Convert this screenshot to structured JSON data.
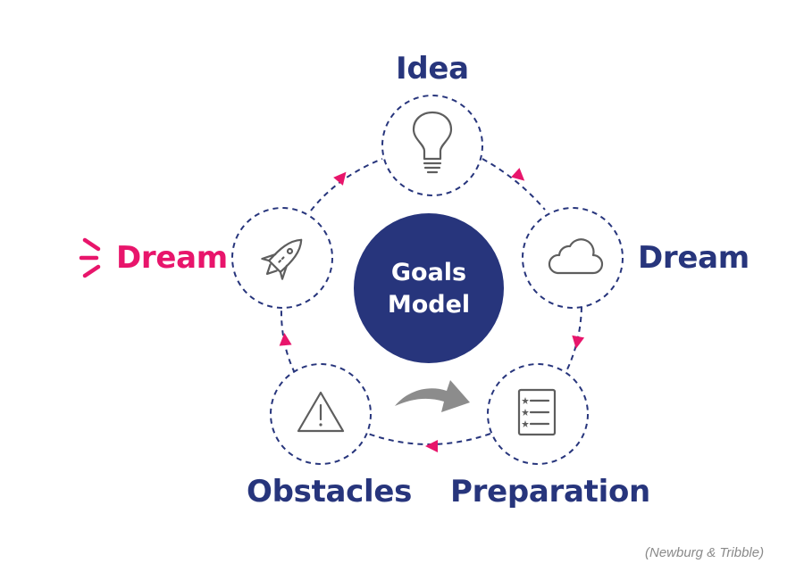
{
  "diagram": {
    "center": {
      "line1": "Goals",
      "line2": "Model"
    },
    "stages": [
      {
        "label": "Idea",
        "icon": "lightbulb-icon"
      },
      {
        "label": "Dream",
        "icon": "cloud-icon"
      },
      {
        "label": "Preparation",
        "icon": "checklist-icon"
      },
      {
        "label": "Obstacles",
        "icon": "warning-triangle-icon"
      },
      {
        "label": "Dream",
        "icon": "rocket-icon"
      }
    ],
    "citation": "(Newburg & Tribble)"
  },
  "colors": {
    "navy": "#27357c",
    "accent": "#e8156b",
    "icon_gray": "#5e5e5e",
    "arrow_gray": "#8c8c8c",
    "citation_gray": "#8a8a8a"
  }
}
